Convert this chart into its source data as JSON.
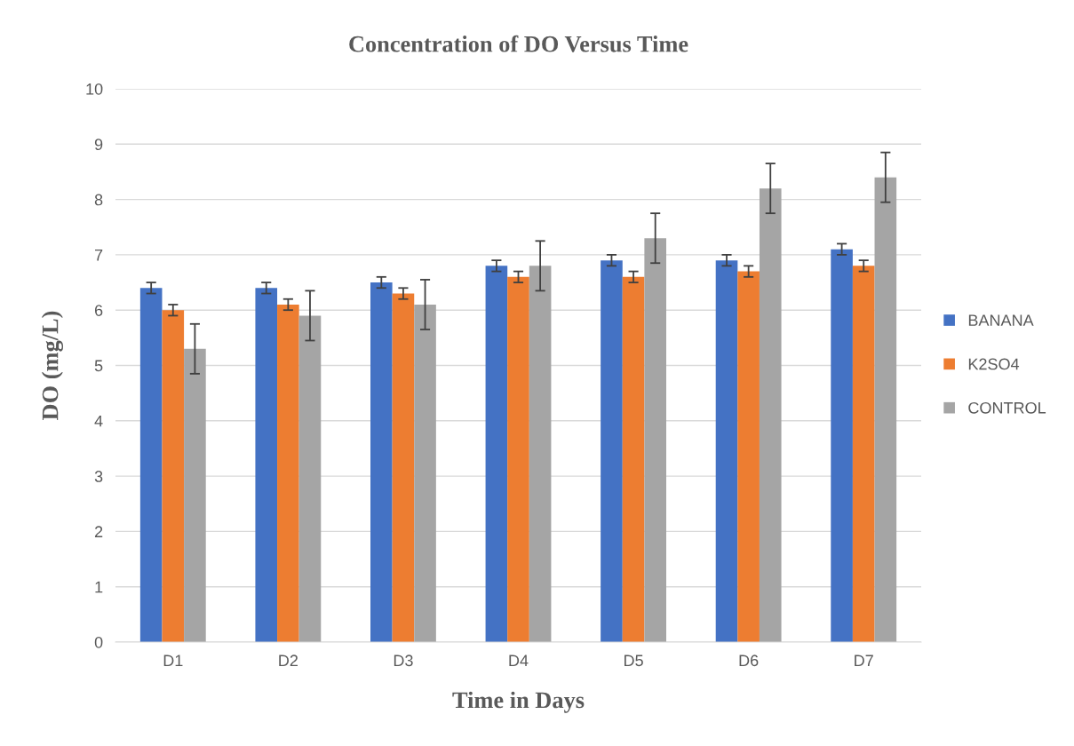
{
  "chart_data": {
    "type": "bar",
    "title": "Concentration of DO Versus Time",
    "xlabel": "Time in Days",
    "ylabel": "DO (mg/L)",
    "categories": [
      "D1",
      "D2",
      "D3",
      "D4",
      "D5",
      "D6",
      "D7"
    ],
    "series": [
      {
        "name": "BANANA",
        "color": "#4472c4",
        "values": [
          6.4,
          6.4,
          6.5,
          6.8,
          6.9,
          6.9,
          7.1
        ],
        "errors": [
          0.1,
          0.1,
          0.1,
          0.1,
          0.1,
          0.1,
          0.1
        ]
      },
      {
        "name": "K2SO4",
        "color": "#ed7d31",
        "values": [
          6.0,
          6.1,
          6.3,
          6.6,
          6.6,
          6.7,
          6.8
        ],
        "errors": [
          0.1,
          0.1,
          0.1,
          0.1,
          0.1,
          0.1,
          0.1
        ]
      },
      {
        "name": "CONTROL",
        "color": "#a5a5a5",
        "values": [
          5.3,
          5.9,
          6.1,
          6.8,
          7.3,
          8.2,
          8.4
        ],
        "errors": [
          0.45,
          0.45,
          0.45,
          0.45,
          0.45,
          0.45,
          0.45
        ]
      }
    ],
    "ylim": [
      0,
      10
    ],
    "yticks": [
      0,
      1,
      2,
      3,
      4,
      5,
      6,
      7,
      8,
      9,
      10
    ],
    "grid": "y",
    "legend": "right"
  }
}
